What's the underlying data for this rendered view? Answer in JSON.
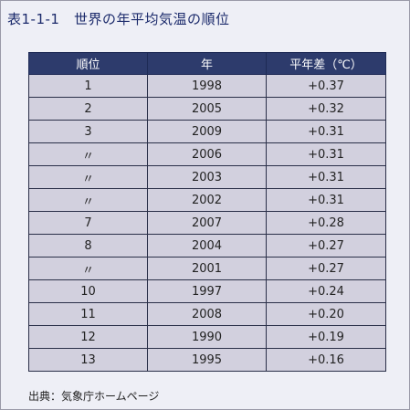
{
  "title": "表1-1-1　世界の年平均気温の順位",
  "table": {
    "headers": [
      "順位",
      "年",
      "平年差（℃）"
    ],
    "rows": [
      [
        "1",
        "1998",
        "+0.37"
      ],
      [
        "2",
        "2005",
        "+0.32"
      ],
      [
        "3",
        "2009",
        "+0.31"
      ],
      [
        "〃",
        "2006",
        "+0.31"
      ],
      [
        "〃",
        "2003",
        "+0.31"
      ],
      [
        "〃",
        "2002",
        "+0.31"
      ],
      [
        "7",
        "2007",
        "+0.28"
      ],
      [
        "8",
        "2004",
        "+0.27"
      ],
      [
        "〃",
        "2001",
        "+0.27"
      ],
      [
        "10",
        "1997",
        "+0.24"
      ],
      [
        "11",
        "2008",
        "+0.20"
      ],
      [
        "12",
        "1990",
        "+0.19"
      ],
      [
        "13",
        "1995",
        "+0.16"
      ]
    ]
  },
  "source": "出典：気象庁ホームページ",
  "colors": {
    "header_bg": "#2d3b6c",
    "cell_bg": "#d2d0de",
    "title_text": "#1b2a6b",
    "panel_bg": "#eeeff6"
  }
}
